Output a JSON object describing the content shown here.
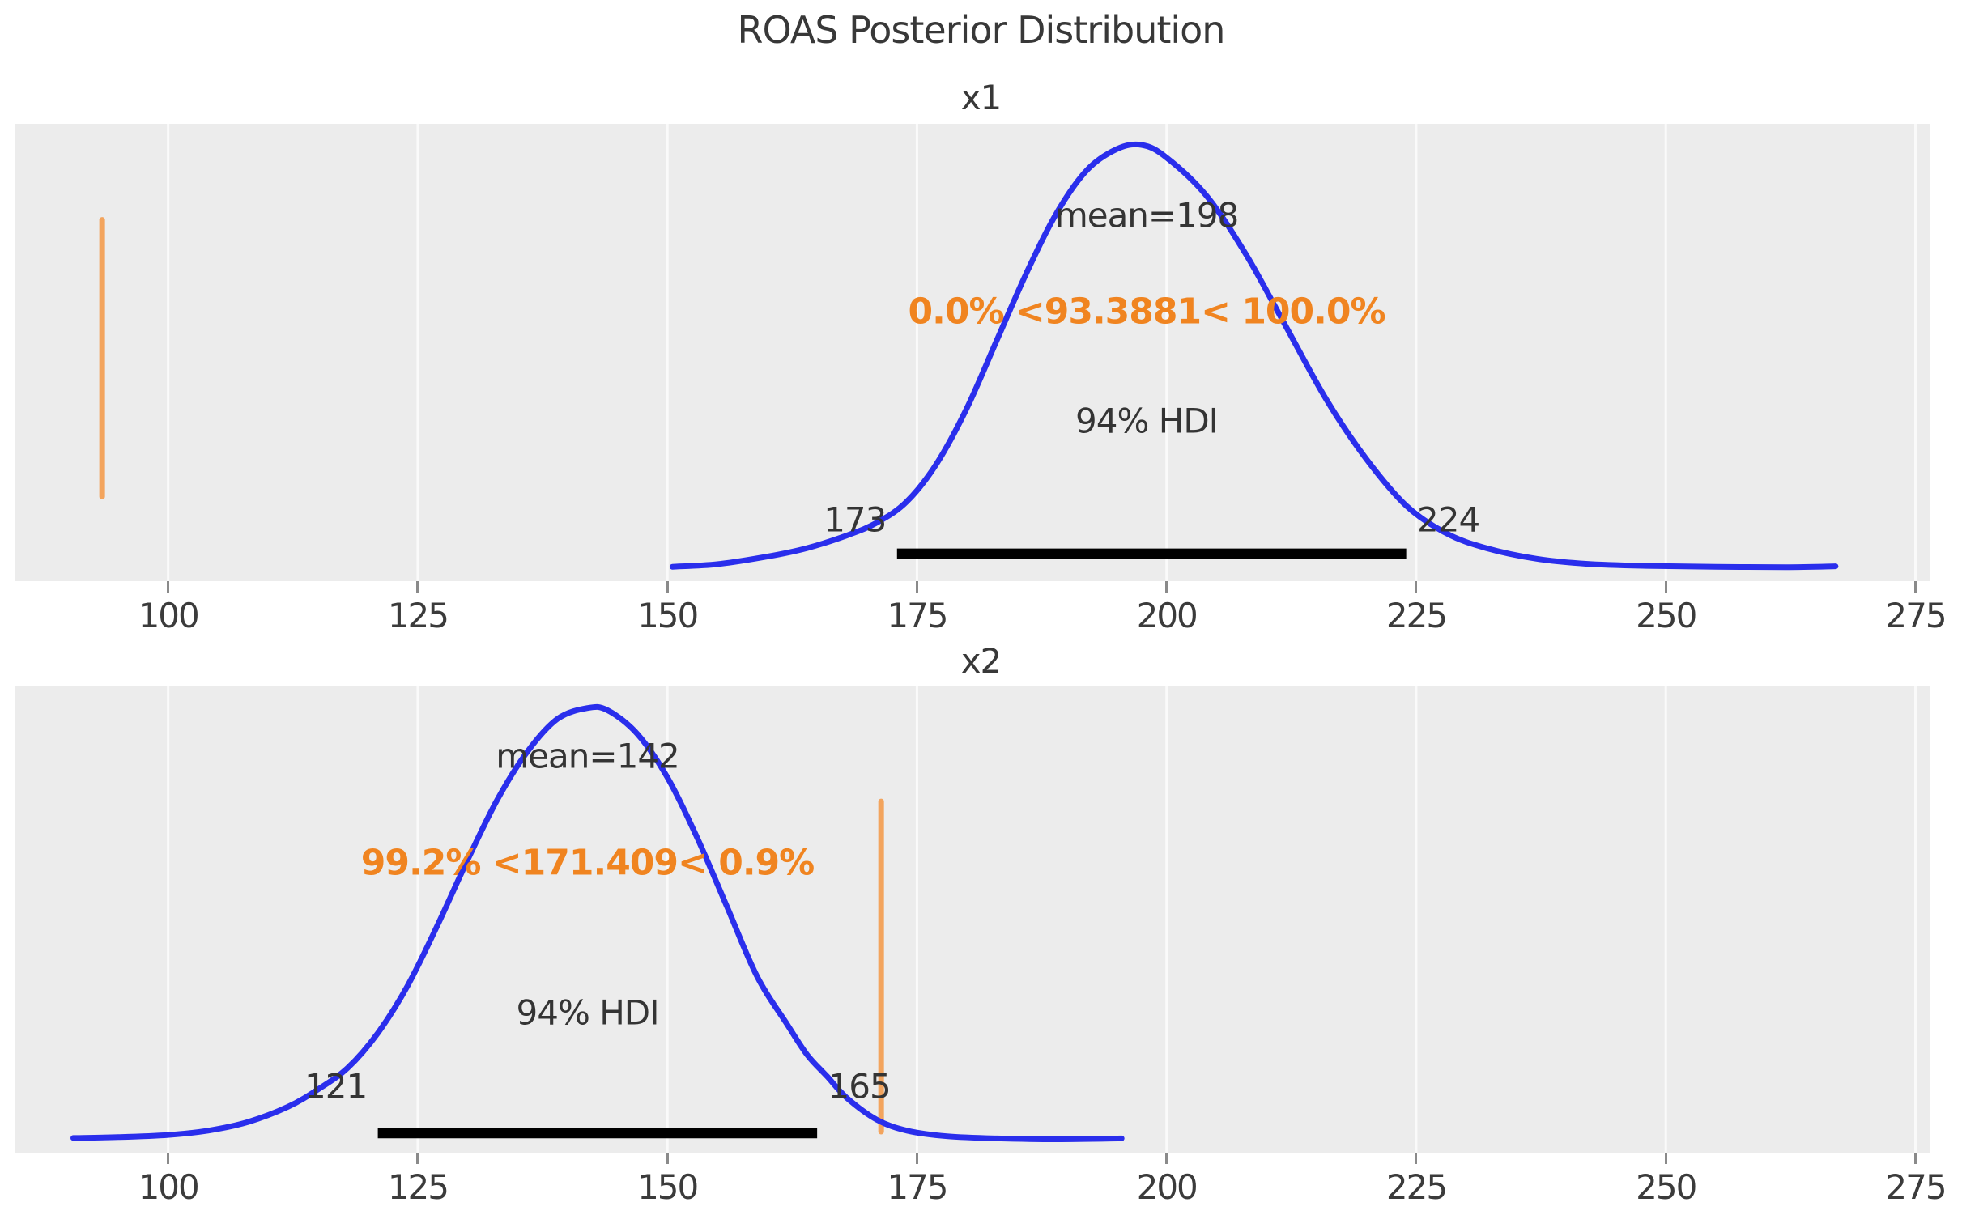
{
  "title": "ROAS Posterior Distribution",
  "colors": {
    "curve": "#2a2eec",
    "ref_line": "#f3a45d",
    "ref_text": "#f08420",
    "hdi_bar": "#000000",
    "plot_bg": "#ececec",
    "gridline": "#fafafa",
    "text": "#343434"
  },
  "chart_data": [
    {
      "type": "area",
      "title": "x1",
      "mean": 198,
      "mean_label": "mean=198",
      "ref_val": 93.3881,
      "ref_val_label": "0.0% <93.3881< 100.0%",
      "hdi_text": "94% HDI",
      "hdi": [
        173,
        224
      ],
      "hdi_lo_label": "173",
      "hdi_hi_label": "224",
      "xlim": [
        84.7,
        276.5
      ],
      "xticks": [
        100,
        125,
        150,
        175,
        200,
        225,
        250,
        275
      ],
      "grid": "vertical-only",
      "legend": "none",
      "density": {
        "x": [
          150.5,
          155,
          160,
          164,
          168,
          171,
          174,
          177,
          180,
          183,
          186,
          189,
          192,
          195,
          197.5,
          200,
          204,
          208,
          212,
          216,
          220,
          224,
          228,
          232,
          237,
          242,
          248,
          255,
          262,
          267
        ],
        "y": [
          0.006,
          0.012,
          0.03,
          0.05,
          0.08,
          0.11,
          0.16,
          0.25,
          0.38,
          0.54,
          0.7,
          0.84,
          0.94,
          0.99,
          1.0,
          0.97,
          0.88,
          0.74,
          0.57,
          0.4,
          0.26,
          0.15,
          0.085,
          0.05,
          0.025,
          0.013,
          0.008,
          0.006,
          0.005,
          0.007
        ]
      }
    },
    {
      "type": "area",
      "title": "x2",
      "mean": 142,
      "mean_label": "mean=142",
      "ref_val": 171.409,
      "ref_val_label": "99.2% <171.409< 0.9%",
      "hdi_text": "94% HDI",
      "hdi": [
        121,
        165
      ],
      "hdi_lo_label": "121",
      "hdi_hi_label": "165",
      "xlim": [
        84.7,
        276.5
      ],
      "xticks": [
        100,
        125,
        150,
        175,
        200,
        225,
        250,
        275
      ],
      "grid": "vertical-only",
      "legend": "none",
      "density": {
        "x": [
          90.5,
          95,
          100,
          104,
          108,
          112,
          115,
          118,
          121,
          124,
          127,
          130,
          133,
          136,
          139,
          142,
          144,
          147,
          150,
          153,
          156,
          159,
          162,
          164,
          166,
          168,
          171,
          174,
          178,
          183,
          189,
          195.5
        ],
        "y": [
          0.008,
          0.01,
          0.015,
          0.025,
          0.045,
          0.08,
          0.12,
          0.17,
          0.25,
          0.36,
          0.5,
          0.65,
          0.79,
          0.9,
          0.975,
          1.0,
          0.995,
          0.94,
          0.84,
          0.7,
          0.54,
          0.38,
          0.27,
          0.2,
          0.15,
          0.1,
          0.05,
          0.025,
          0.012,
          0.007,
          0.005,
          0.007
        ]
      }
    }
  ]
}
